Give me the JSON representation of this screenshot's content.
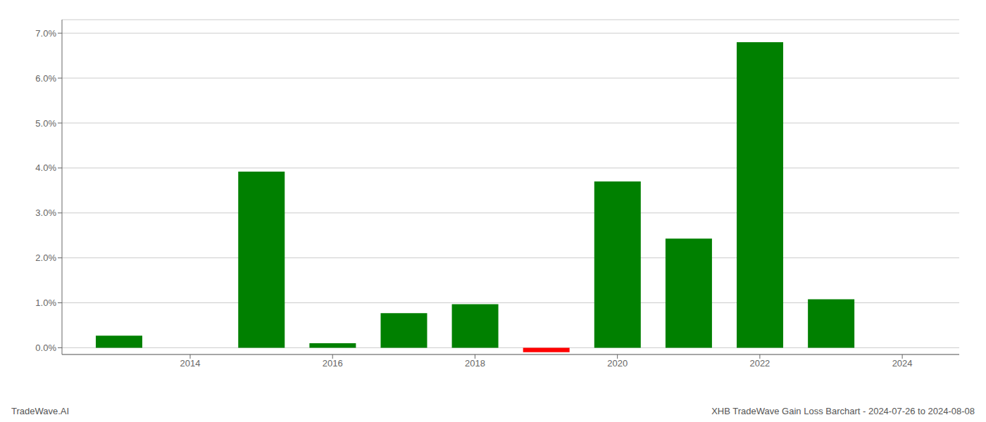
{
  "chart_data": {
    "type": "bar",
    "x": [
      2013,
      2015,
      2016,
      2017,
      2018,
      2019,
      2020,
      2021,
      2022,
      2023
    ],
    "values": [
      0.0027,
      0.0392,
      0.001,
      0.0077,
      0.0097,
      -0.001,
      0.037,
      0.0243,
      0.068,
      0.0108
    ],
    "colors": [
      "#008000",
      "#008000",
      "#008000",
      "#008000",
      "#008000",
      "#ff0000",
      "#008000",
      "#008000",
      "#008000",
      "#008000"
    ],
    "xlim": [
      2012.2,
      2024.8
    ],
    "xticks": [
      2014,
      2016,
      2018,
      2020,
      2022,
      2024
    ],
    "ylim": [
      -0.0015,
      0.073
    ],
    "yticks": [
      {
        "value": 0.0,
        "label": "0.0%"
      },
      {
        "value": 0.01,
        "label": "1.0%"
      },
      {
        "value": 0.02,
        "label": "2.0%"
      },
      {
        "value": 0.03,
        "label": "3.0%"
      },
      {
        "value": 0.04,
        "label": "4.0%"
      },
      {
        "value": 0.05,
        "label": "5.0%"
      },
      {
        "value": 0.06,
        "label": "6.0%"
      },
      {
        "value": 0.07,
        "label": "7.0%"
      }
    ],
    "grid": true,
    "annotations": [
      "TradeWave.AI",
      "XHB TradeWave Gain Loss Barchart - 2024-07-26 to 2024-08-08"
    ]
  }
}
